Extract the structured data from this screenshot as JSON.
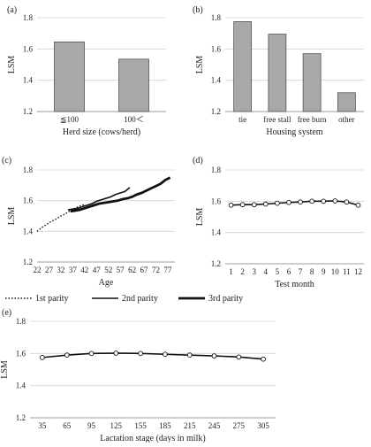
{
  "chart_data": [
    {
      "panel": "(a)",
      "type": "bar",
      "xlabel": "Herd size (cows/herd)",
      "ylabel": "LSM",
      "ylim": [
        1.2,
        1.8
      ],
      "yticks": [
        "1.2",
        "1.4",
        "1.6",
        "1.8"
      ],
      "categories": [
        "≦100",
        "100＜"
      ],
      "values": [
        1.645,
        1.535
      ],
      "bar_color": "#a8a8a8"
    },
    {
      "panel": "(b)",
      "type": "bar",
      "xlabel": "Housing system",
      "ylabel": "LSM",
      "ylim": [
        1.2,
        1.8
      ],
      "yticks": [
        "1.2",
        "1.4",
        "1.6",
        "1.8"
      ],
      "categories": [
        "tie",
        "free stall",
        "free burn",
        "other"
      ],
      "values": [
        1.775,
        1.695,
        1.57,
        1.32
      ],
      "bar_color": "#a8a8a8"
    },
    {
      "panel": "(c)",
      "type": "line",
      "xlabel": "Age",
      "ylabel": "LSM",
      "ylim": [
        1.2,
        1.8
      ],
      "xlim": [
        22,
        80
      ],
      "yticks": [
        "1.2",
        "1.4",
        "1.6",
        "1.8"
      ],
      "xticks": [
        "22",
        "27",
        "32",
        "37",
        "42",
        "47",
        "52",
        "57",
        "62",
        "67",
        "72",
        "77"
      ],
      "series": [
        {
          "name": "1st parity",
          "style": "dotted",
          "x": [
            22,
            24,
            26,
            28,
            30,
            32,
            34,
            36,
            38,
            40,
            42
          ],
          "y": [
            1.4,
            1.425,
            1.445,
            1.465,
            1.48,
            1.5,
            1.515,
            1.535,
            1.55,
            1.565,
            1.575
          ]
        },
        {
          "name": "2nd parity",
          "style": "solid",
          "x": [
            35,
            37,
            39,
            41,
            43,
            45,
            47,
            49,
            51,
            53,
            55,
            57,
            59,
            61
          ],
          "y": [
            1.54,
            1.545,
            1.55,
            1.56,
            1.57,
            1.58,
            1.595,
            1.605,
            1.615,
            1.625,
            1.64,
            1.65,
            1.66,
            1.685
          ]
        },
        {
          "name": "3rd parity",
          "style": "thick",
          "x": [
            36,
            38,
            40,
            42,
            44,
            46,
            48,
            50,
            52,
            54,
            56,
            58,
            60,
            62,
            64,
            66,
            68,
            70,
            72,
            74,
            76,
            78
          ],
          "y": [
            1.53,
            1.535,
            1.54,
            1.55,
            1.56,
            1.57,
            1.58,
            1.585,
            1.59,
            1.595,
            1.6,
            1.61,
            1.615,
            1.625,
            1.64,
            1.65,
            1.665,
            1.68,
            1.695,
            1.71,
            1.735,
            1.75
          ]
        }
      ],
      "legend": "bottom"
    },
    {
      "panel": "(d)",
      "type": "line",
      "xlabel": "Test month",
      "ylabel": "LSM",
      "ylim": [
        1.2,
        1.8
      ],
      "xlim": [
        0.5,
        12.5
      ],
      "yticks": [
        "1.2",
        "1.4",
        "1.6",
        "1.8"
      ],
      "xticks": [
        "1",
        "2",
        "3",
        "4",
        "5",
        "6",
        "7",
        "8",
        "9",
        "10",
        "11",
        "12"
      ],
      "series": [
        {
          "x": [
            1,
            2,
            3,
            4,
            5,
            6,
            7,
            8,
            9,
            10,
            11,
            12
          ],
          "y": [
            1.575,
            1.578,
            1.578,
            1.582,
            1.587,
            1.592,
            1.595,
            1.6,
            1.6,
            1.602,
            1.595,
            1.575
          ]
        }
      ]
    },
    {
      "panel": "(e)",
      "type": "line",
      "xlabel": "Lactation stage (days in milk)",
      "ylabel": "LSM",
      "ylim": [
        1.2,
        1.8
      ],
      "xlim": [
        20,
        320
      ],
      "yticks": [
        "1.2",
        "1.4",
        "1.6",
        "1.8"
      ],
      "xticks": [
        "35",
        "65",
        "95",
        "125",
        "155",
        "185",
        "215",
        "245",
        "275",
        "305"
      ],
      "series": [
        {
          "x": [
            35,
            65,
            95,
            125,
            155,
            185,
            215,
            245,
            275,
            305
          ],
          "y": [
            1.575,
            1.59,
            1.6,
            1.602,
            1.6,
            1.595,
            1.59,
            1.585,
            1.578,
            1.565
          ]
        }
      ]
    }
  ]
}
